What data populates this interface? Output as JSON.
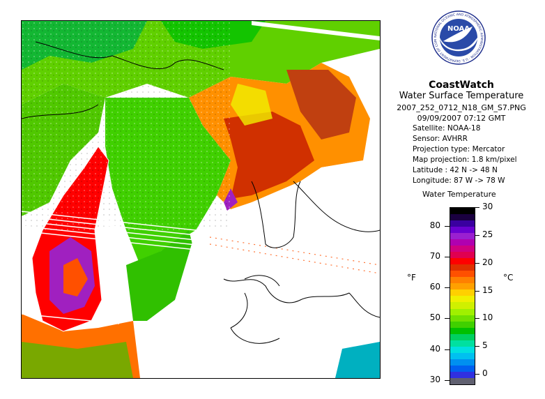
{
  "header": {
    "title": "CoastWatch",
    "subtitle": "Water Surface Temperature",
    "filename": "2007_252_0712_N18_GM_S7.PNG",
    "datetime": "09/09/2007   07:12 GMT",
    "satellite": "Satellite: NOAA-18",
    "sensor": "Sensor: AVHRR",
    "projection_type": "Projection type:  Mercator",
    "map_projection": "Map projection: 1.8 km/pixel",
    "latitude": "Latitude : 42 N -> 48 N",
    "longitude": "Longitude: 87 W -> 78 W"
  },
  "logo": {
    "text": "NOAA",
    "ring_text": "NATIONAL OCEANIC AND ATMOSPHERIC ADMINISTRATION · U.S. DEPARTMENT OF COMMERCE"
  },
  "legend": {
    "title": "Water Temperature",
    "unit_left": "°F",
    "unit_right": "°C",
    "fahrenheit_ticks": [
      {
        "label": "80",
        "value": 80
      },
      {
        "label": "70",
        "value": 70
      },
      {
        "label": "60",
        "value": 60
      },
      {
        "label": "50",
        "value": 50
      },
      {
        "label": "40",
        "value": 40
      },
      {
        "label": "30",
        "value": 30
      }
    ],
    "celsius_ticks": [
      {
        "label": "30",
        "value": 30
      },
      {
        "label": "25",
        "value": 25
      },
      {
        "label": "20",
        "value": 20
      },
      {
        "label": "15",
        "value": 15
      },
      {
        "label": "10",
        "value": 10
      },
      {
        "label": "5",
        "value": 5
      },
      {
        "label": "0",
        "value": 0
      }
    ],
    "colors": [
      "#000000",
      "#1a0040",
      "#3a00a0",
      "#6a00d0",
      "#9a20d0",
      "#b000b0",
      "#d00080",
      "#e00050",
      "#ff0000",
      "#e03000",
      "#ff5000",
      "#ff8000",
      "#ffa000",
      "#ffd000",
      "#f0f000",
      "#d0f000",
      "#a0f000",
      "#70e000",
      "#40d000",
      "#00c000",
      "#00d060",
      "#00e0a0",
      "#00e0e0",
      "#00c0f0",
      "#0090f0",
      "#0060f0",
      "#3030e0",
      "#606070"
    ]
  },
  "map": {
    "colors": {
      "land": "#ffffff",
      "coast": "#000000",
      "cold": "#00b0ff",
      "cool": "#00c000",
      "mild": "#a0f000",
      "warm": "#ffa000",
      "hot": "#ff5000",
      "hotter": "#d03000",
      "hottest": "#ff0000",
      "extreme": "#a020c0"
    }
  }
}
